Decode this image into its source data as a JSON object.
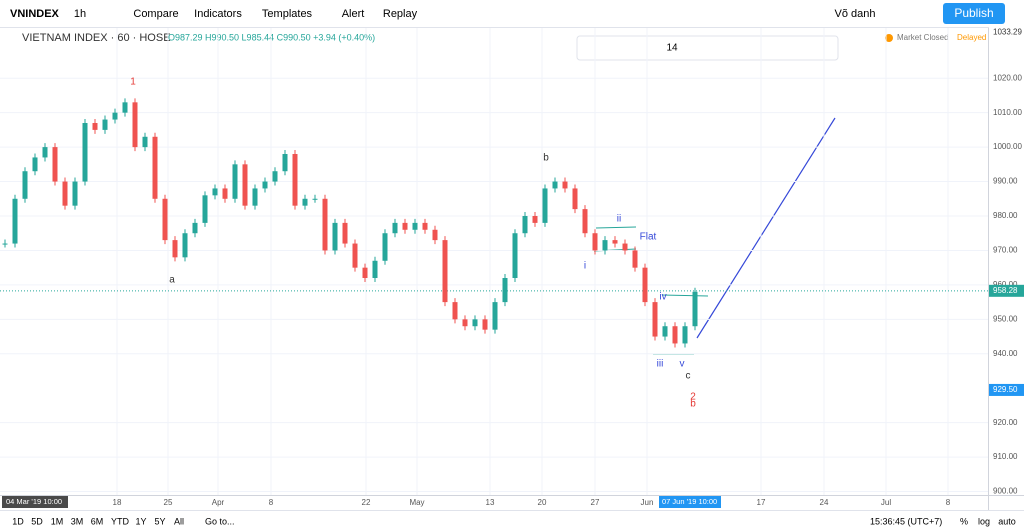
{
  "toolbar": {
    "symbol": "VNINDEX",
    "interval": "1h",
    "buttons": [
      "Compare",
      "Indicators",
      "Templates",
      "Alert",
      "Replay"
    ],
    "user": "Võ danh",
    "publish": "Publish"
  },
  "legend": {
    "title": "VIETNAM INDEX · 60 · HOSE",
    "ohlc": "O987.29 H990.50 L985.44 C990.50 +3.94 (+0.40%)",
    "status": "Market Closed",
    "delayed": "Delayed"
  },
  "drawing_toolbar": {
    "font_size": "14"
  },
  "price_axis": {
    "ylim": [
      899,
      1034
    ],
    "ticks": [
      {
        "value": 1020,
        "label": "1020.00"
      },
      {
        "value": 1010,
        "label": "1010.00"
      },
      {
        "value": 1000,
        "label": "1000.00"
      },
      {
        "value": 990,
        "label": "990.00"
      },
      {
        "value": 980,
        "label": "980.00"
      },
      {
        "value": 970,
        "label": "970.00"
      },
      {
        "value": 960,
        "label": "960.00"
      },
      {
        "value": 950,
        "label": "950.00"
      },
      {
        "value": 940,
        "label": "940.00"
      },
      {
        "value": 920,
        "label": "920.00"
      },
      {
        "value": 910,
        "label": "910.00"
      },
      {
        "value": 900,
        "label": "900.00"
      }
    ],
    "high_label": {
      "value": 1033.29,
      "label": "1033.29"
    },
    "last_label": {
      "value": 958.28,
      "label": "958.28"
    },
    "level_label": {
      "value": 929.5,
      "label": "929.50"
    }
  },
  "time_axis": {
    "labels": [
      "18",
      "25",
      "Apr",
      "8",
      "22",
      "May",
      "13",
      "20",
      "27",
      "Jun",
      "17",
      "24",
      "Jul",
      "8"
    ],
    "start": "04 Mar '19  10:00",
    "cursor": "07 Jun '19  10:00"
  },
  "chart": {
    "closes": [
      972,
      985,
      993,
      997,
      1000,
      990,
      983,
      990,
      1007,
      1005,
      1008,
      1010,
      1013,
      1000,
      1003,
      985,
      973,
      968,
      975,
      978,
      986,
      988,
      985,
      995,
      983,
      988,
      990,
      993,
      998,
      983,
      985,
      985,
      970,
      978,
      972,
      965,
      962,
      967,
      975,
      978,
      976,
      978,
      976,
      973,
      955,
      950,
      948,
      950,
      947,
      955,
      962,
      975,
      980,
      978,
      988,
      990,
      988,
      982,
      975,
      970,
      973,
      972,
      970,
      965,
      955,
      945,
      948,
      943,
      948,
      958
    ],
    "annotations": [
      "1",
      "a",
      "b",
      "ii",
      "Flat",
      "i",
      "iv",
      "iii",
      "v",
      "c",
      "2",
      "b"
    ]
  },
  "bottom_bar": {
    "ranges": [
      "1D",
      "5D",
      "1M",
      "3M",
      "6M",
      "YTD",
      "1Y",
      "5Y",
      "All"
    ],
    "goto": "Go to...",
    "clock": "15:36:45 (UTC+7)",
    "options": [
      "%",
      "log",
      "auto"
    ]
  }
}
